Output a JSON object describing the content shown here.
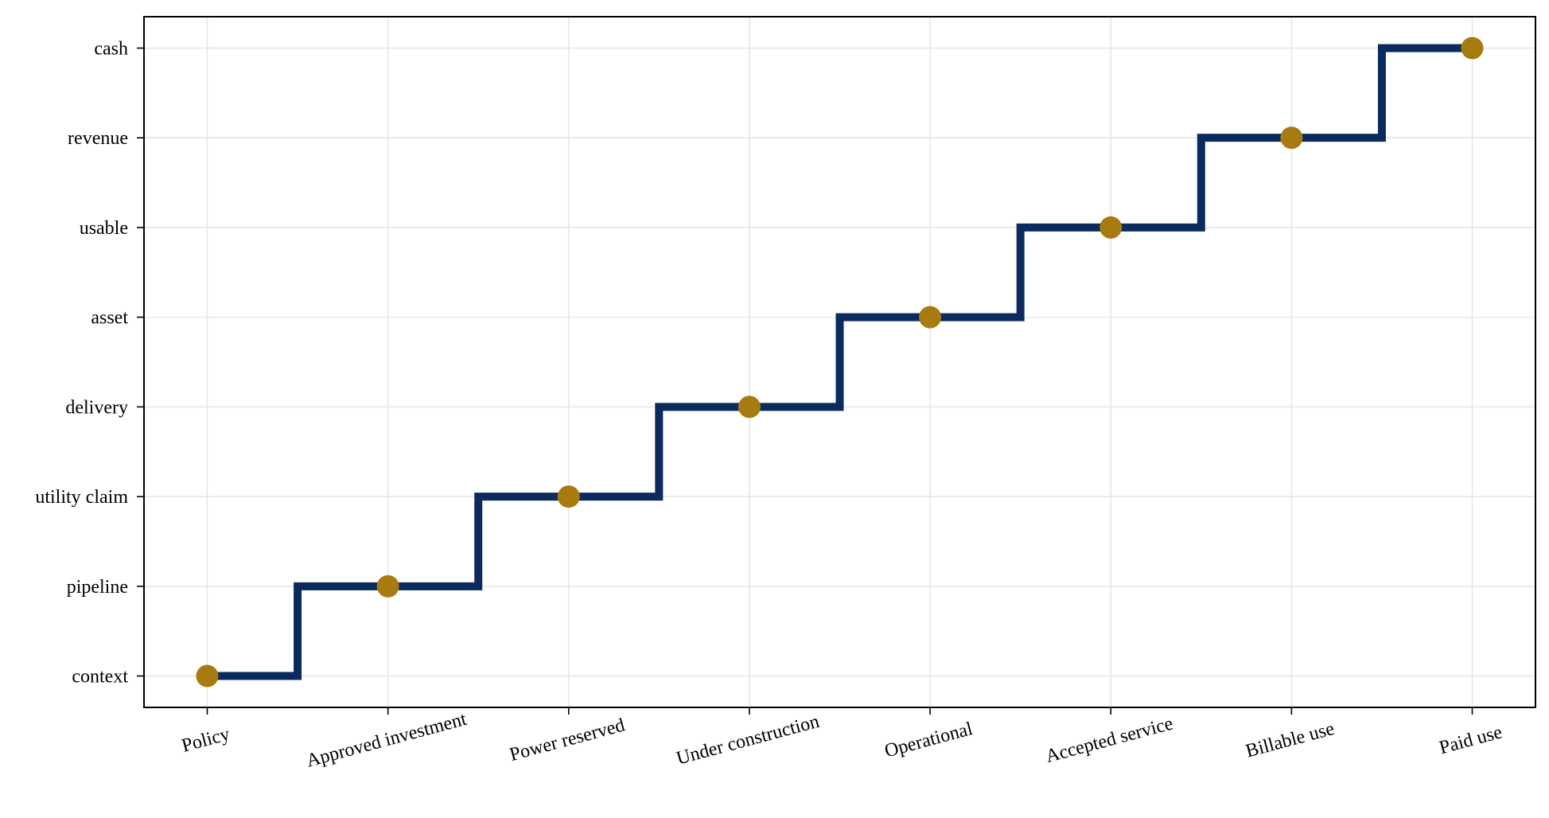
{
  "chart_data": {
    "type": "line",
    "step": "mid",
    "title": "",
    "xlabel": "",
    "ylabel": "",
    "categories": [
      "Policy",
      "Approved investment",
      "Power reserved",
      "Under construction",
      "Operational",
      "Accepted service",
      "Billable use",
      "Paid use"
    ],
    "y_categories": [
      "context",
      "pipeline",
      "utility claim",
      "delivery",
      "asset",
      "usable",
      "revenue",
      "cash"
    ],
    "series": [
      {
        "values": [
          0,
          1,
          2,
          3,
          4,
          5,
          6,
          7
        ]
      }
    ],
    "grid": true,
    "xtick_rotation_deg": 15,
    "colors": {
      "line": "#0b2a5e",
      "markers": "#a87b10",
      "grid": "#e6e6e6",
      "axes": "#000000"
    }
  }
}
